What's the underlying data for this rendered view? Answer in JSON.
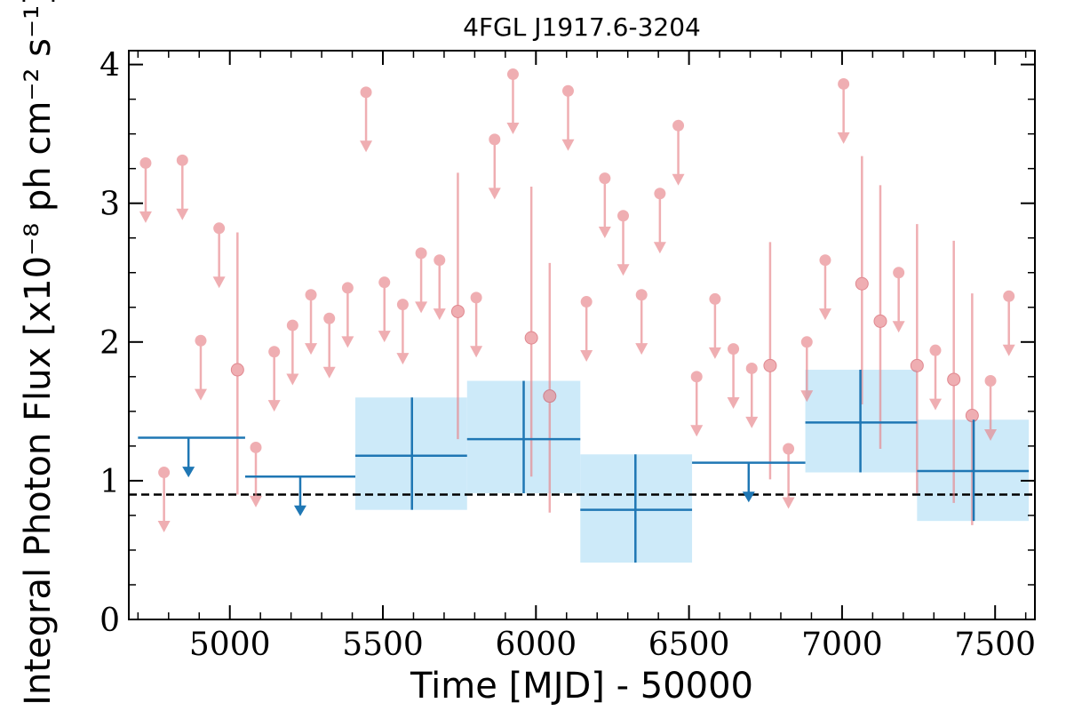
{
  "chart_data": {
    "type": "scatter",
    "title": "4FGL J1917.6-3204",
    "xlabel": "Time [MJD] - 50000",
    "ylabel": "Integral Photon Flux [x10⁻⁸ ph cm⁻² s⁻¹]",
    "xlim": [
      4670,
      7630
    ],
    "ylim": [
      0,
      4.1
    ],
    "xticks": [
      5000,
      5500,
      6000,
      6500,
      7000,
      7500
    ],
    "yticks": [
      0,
      1,
      2,
      3,
      4
    ],
    "grid": false,
    "reference_line": {
      "y": 0.9,
      "style": "dashed",
      "color": "#000000"
    },
    "colors": {
      "fine": "#e8848a",
      "coarse": "#1f77b4",
      "coarse_band": "#cdeaf9"
    },
    "fine_bins": {
      "upper_limits": [
        {
          "x": 4725,
          "y": 3.29
        },
        {
          "x": 4785,
          "y": 1.06
        },
        {
          "x": 4845,
          "y": 3.31
        },
        {
          "x": 4905,
          "y": 2.01
        },
        {
          "x": 4965,
          "y": 2.82
        },
        {
          "x": 5085,
          "y": 1.24
        },
        {
          "x": 5145,
          "y": 1.93
        },
        {
          "x": 5205,
          "y": 2.12
        },
        {
          "x": 5265,
          "y": 2.34
        },
        {
          "x": 5325,
          "y": 2.17
        },
        {
          "x": 5385,
          "y": 2.39
        },
        {
          "x": 5445,
          "y": 3.8
        },
        {
          "x": 5505,
          "y": 2.43
        },
        {
          "x": 5565,
          "y": 2.27
        },
        {
          "x": 5625,
          "y": 2.64
        },
        {
          "x": 5685,
          "y": 2.59
        },
        {
          "x": 5805,
          "y": 2.32
        },
        {
          "x": 5865,
          "y": 3.46
        },
        {
          "x": 5925,
          "y": 3.93
        },
        {
          "x": 6105,
          "y": 3.81
        },
        {
          "x": 6165,
          "y": 2.29
        },
        {
          "x": 6225,
          "y": 3.18
        },
        {
          "x": 6285,
          "y": 2.91
        },
        {
          "x": 6345,
          "y": 2.34
        },
        {
          "x": 6405,
          "y": 3.07
        },
        {
          "x": 6465,
          "y": 3.56
        },
        {
          "x": 6525,
          "y": 1.75
        },
        {
          "x": 6585,
          "y": 2.31
        },
        {
          "x": 6645,
          "y": 1.95
        },
        {
          "x": 6705,
          "y": 1.81
        },
        {
          "x": 6825,
          "y": 1.23
        },
        {
          "x": 6885,
          "y": 2.0
        },
        {
          "x": 6945,
          "y": 2.59
        },
        {
          "x": 7005,
          "y": 3.86
        },
        {
          "x": 7185,
          "y": 2.5
        },
        {
          "x": 7305,
          "y": 1.94
        },
        {
          "x": 7485,
          "y": 1.72
        },
        {
          "x": 7545,
          "y": 2.33
        }
      ],
      "detections": [
        {
          "x": 5025,
          "y": 1.8,
          "ylo": 0.9,
          "yhi": 2.79
        },
        {
          "x": 5745,
          "y": 2.22,
          "ylo": 1.3,
          "yhi": 3.22
        },
        {
          "x": 5985,
          "y": 2.03,
          "ylo": 1.03,
          "yhi": 3.12
        },
        {
          "x": 6045,
          "y": 1.61,
          "ylo": 0.77,
          "yhi": 2.57
        },
        {
          "x": 6765,
          "y": 1.83,
          "ylo": 1.01,
          "yhi": 2.72
        },
        {
          "x": 7065,
          "y": 2.42,
          "ylo": 1.55,
          "yhi": 3.34
        },
        {
          "x": 7125,
          "y": 2.15,
          "ylo": 1.23,
          "yhi": 3.13
        },
        {
          "x": 7245,
          "y": 1.83,
          "ylo": 0.91,
          "yhi": 2.85
        },
        {
          "x": 7365,
          "y": 1.73,
          "ylo": 0.84,
          "yhi": 2.73
        },
        {
          "x": 7425,
          "y": 1.47,
          "ylo": 0.68,
          "yhi": 2.35
        }
      ]
    },
    "coarse_bins": {
      "upper_limits": [
        {
          "x": 4865,
          "x0": 4700,
          "x1": 5050,
          "y": 1.31
        },
        {
          "x": 5230,
          "x0": 5050,
          "x1": 5410,
          "y": 1.03
        },
        {
          "x": 6695,
          "x0": 6510,
          "x1": 6880,
          "y": 1.13
        }
      ],
      "detections": [
        {
          "x": 5595,
          "x0": 5410,
          "x1": 5775,
          "y": 1.18,
          "ylo": 0.79,
          "yhi": 1.6
        },
        {
          "x": 5960,
          "x0": 5775,
          "x1": 6145,
          "y": 1.3,
          "ylo": 0.91,
          "yhi": 1.72
        },
        {
          "x": 6325,
          "x0": 6145,
          "x1": 6510,
          "y": 0.79,
          "ylo": 0.41,
          "yhi": 1.19
        },
        {
          "x": 7060,
          "x0": 6880,
          "x1": 7245,
          "y": 1.42,
          "ylo": 1.06,
          "yhi": 1.8
        },
        {
          "x": 7430,
          "x0": 7245,
          "x1": 7610,
          "y": 1.07,
          "ylo": 0.71,
          "yhi": 1.44
        }
      ]
    }
  }
}
